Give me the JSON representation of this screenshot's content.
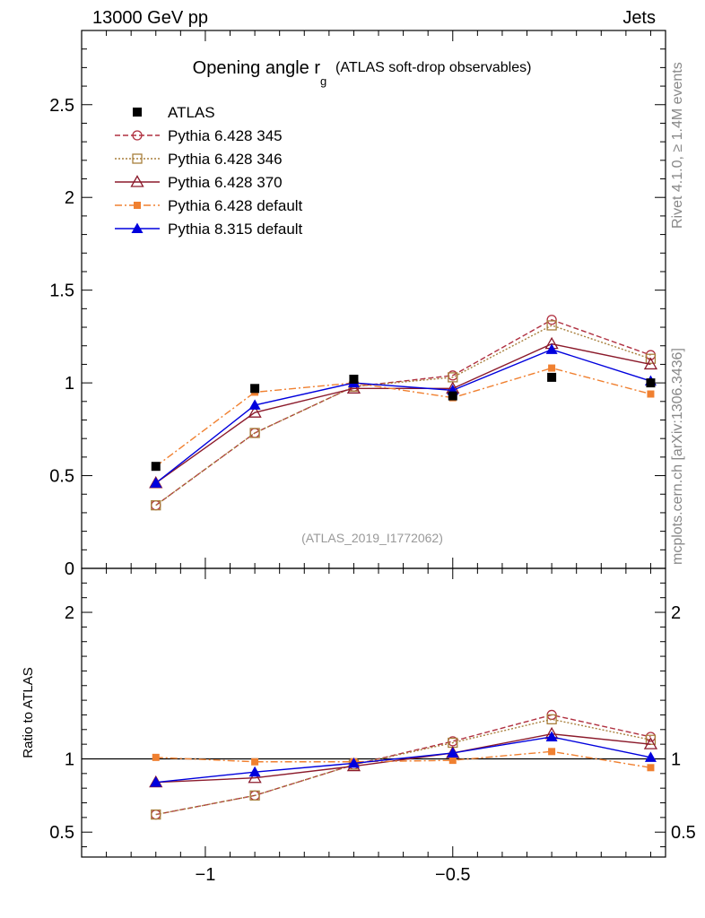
{
  "header": {
    "energy_label": "13000 GeV pp",
    "category_label": "Jets"
  },
  "side_text": {
    "rivet": "Rivet 4.1.0, ≥ 1.4M events",
    "mcplots": "mcplots.cern.ch [arXiv:1306.3436]"
  },
  "chart_data": {
    "type": "line",
    "title": "Opening angle r",
    "title_subscript": "g",
    "subtitle": "(ATLAS soft-drop observables)",
    "analysis_tag": "(ATLAS_2019_I1772062)",
    "x": [
      -1.1,
      -0.9,
      -0.7,
      -0.5,
      -0.3,
      -0.1
    ],
    "xlim": [
      -1.25,
      -0.07
    ],
    "x_ticks": [
      -1,
      -0.5
    ],
    "x_tick_labels": [
      "−1",
      "−0.5"
    ],
    "main": {
      "ylim": [
        0,
        2.9
      ],
      "y_ticks": [
        0,
        0.5,
        1,
        1.5,
        2,
        2.5
      ],
      "y_tick_labels": [
        "0",
        "0.5",
        "1",
        "1.5",
        "2",
        "2.5"
      ]
    },
    "ratio": {
      "ylabel": "Ratio to ATLAS",
      "ylim": [
        0.33,
        2.3
      ],
      "y_ticks": [
        0.5,
        1,
        2
      ],
      "y_tick_labels": [
        "0.5",
        "1",
        "2"
      ],
      "reference": 1
    },
    "series": [
      {
        "name": "ATLAS",
        "color": "#000000",
        "marker": "square-filled",
        "dash": "none",
        "values": [
          0.55,
          0.97,
          1.02,
          0.93,
          1.03,
          1.0
        ],
        "ratio": [
          1.0,
          1.0,
          1.0,
          1.0,
          1.0,
          1.0
        ]
      },
      {
        "name": "Pythia 6.428 345",
        "color": "#b03040",
        "marker": "circle-open",
        "dash": "6,3",
        "values": [
          0.34,
          0.73,
          0.98,
          1.04,
          1.34,
          1.15
        ],
        "ratio": [
          0.62,
          0.75,
          0.96,
          1.12,
          1.3,
          1.15
        ]
      },
      {
        "name": "Pythia 6.428 346",
        "color": "#a87f3c",
        "marker": "square-open",
        "dash": "2,2",
        "values": [
          0.34,
          0.73,
          0.98,
          1.03,
          1.31,
          1.13
        ],
        "ratio": [
          0.62,
          0.75,
          0.96,
          1.11,
          1.27,
          1.13
        ]
      },
      {
        "name": "Pythia 6.428 370",
        "color": "#8b1a2b",
        "marker": "triangle-open",
        "dash": "none",
        "values": [
          0.46,
          0.84,
          0.97,
          0.97,
          1.21,
          1.1
        ],
        "ratio": [
          0.84,
          0.87,
          0.95,
          1.04,
          1.17,
          1.1
        ]
      },
      {
        "name": "Pythia 6.428 default",
        "color": "#f08030",
        "marker": "square-filled-small",
        "dash": "8,3,2,3",
        "values": [
          0.55,
          0.95,
          1.0,
          0.92,
          1.08,
          0.94
        ],
        "ratio": [
          1.01,
          0.98,
          0.98,
          0.99,
          1.05,
          0.94
        ]
      },
      {
        "name": "Pythia 8.315 default",
        "color": "#0000dd",
        "marker": "triangle-filled",
        "dash": "none",
        "values": [
          0.46,
          0.88,
          1.0,
          0.96,
          1.18,
          1.01
        ],
        "ratio": [
          0.84,
          0.91,
          0.97,
          1.04,
          1.15,
          1.01
        ]
      }
    ]
  }
}
